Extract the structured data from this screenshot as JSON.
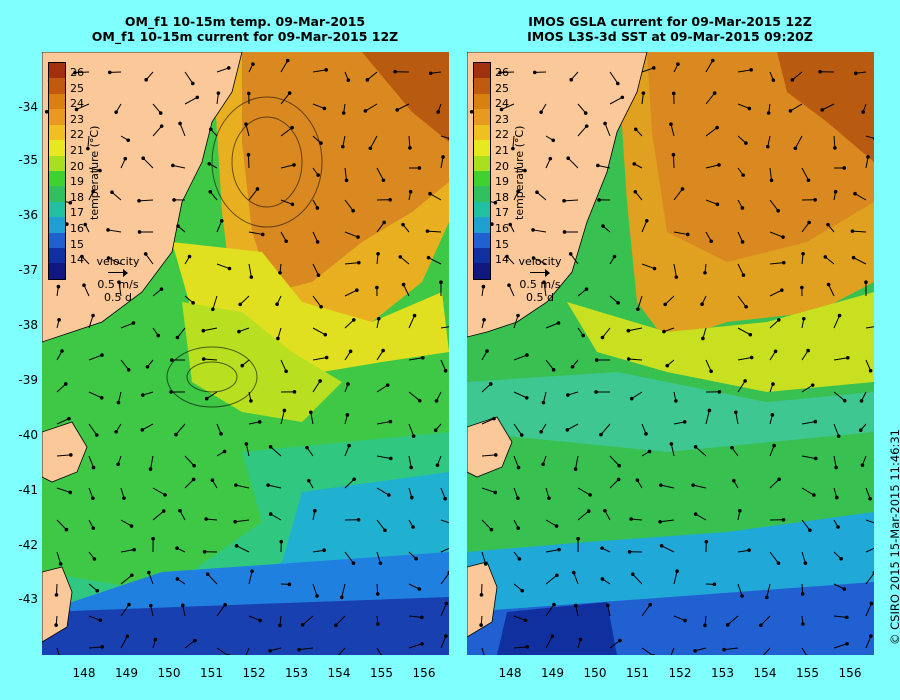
{
  "left_panel": {
    "title_line1": "OM_f1 10-15m temp. 09-Mar-2015",
    "title_line2": "OM_f1 10-15m current for 09-Mar-2015 12Z"
  },
  "right_panel": {
    "title_line1": "IMOS GSLA current for 09-Mar-2015 12Z",
    "title_line2": "IMOS L3S-3d SST at 09-Mar-2015 09:20Z"
  },
  "latitudes": [
    "-34",
    "-35",
    "-36",
    "-37",
    "-38",
    "-39",
    "-40",
    "-41",
    "-42",
    "-43"
  ],
  "longitudes": [
    "148",
    "149",
    "150",
    "151",
    "152",
    "153",
    "154",
    "155",
    "156"
  ],
  "colorbar": {
    "ticks": [
      "26",
      "25",
      "24",
      "23",
      "22",
      "21",
      "20",
      "19",
      "18",
      "17",
      "16",
      "15",
      "14"
    ],
    "colors": [
      "#a03010",
      "#c05a10",
      "#d88010",
      "#e89a20",
      "#f0c020",
      "#e8e820",
      "#a8e020",
      "#40d030",
      "#30c060",
      "#20c0a0",
      "#20a0d0",
      "#2060d0",
      "#1030a0",
      "#101880"
    ],
    "unit_label": "temperature (°C)"
  },
  "legend": {
    "velocity_label": "velocity",
    "speed_label": "0.5 m/s",
    "time_label": "0.5 d"
  },
  "credit": "© CSIRO 2015   15-Mar-2015 11:46:31",
  "colors": {
    "background": "#80ffff",
    "land": "#fbc89a",
    "warm": "#d9891f",
    "hot": "#b85a10",
    "mid": "#e0d020",
    "cool": "#40c840",
    "cold": "#2080e0",
    "coldest": "#1840b0"
  }
}
